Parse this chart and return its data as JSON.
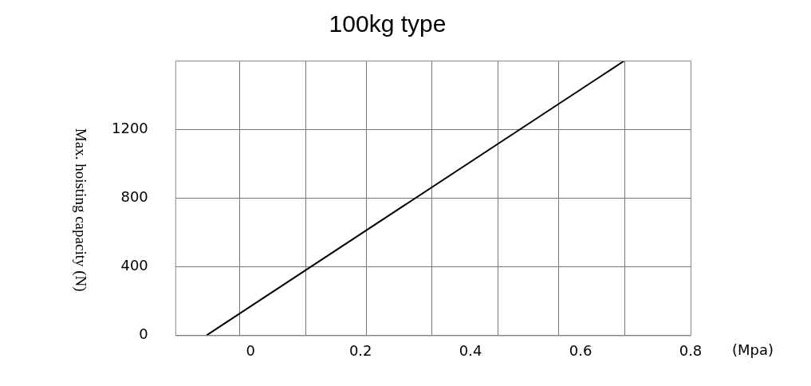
{
  "chart_data": {
    "type": "line",
    "title": "100kg type",
    "xlabel": "(Mpa)",
    "ylabel": "Max. hoisting capacity (N)",
    "series": [
      {
        "x": [
          -0.08,
          0.68
        ],
        "values": [
          0,
          1600
        ],
        "color": "#000000"
      }
    ],
    "xlim": [
      -0.137,
      0.8
    ],
    "xticks": [
      {
        "value": -0.02,
        "label": null
      },
      {
        "value": 0.1,
        "label": null
      },
      {
        "value": 0.21,
        "label": null
      },
      {
        "value": 0.33,
        "label": null
      },
      {
        "value": 0.45,
        "label": null
      },
      {
        "value": 0.56,
        "label": null
      },
      {
        "value": 0.68,
        "label": null
      },
      0,
      0.2,
      0.4,
      0.6,
      0.8
    ],
    "ylim": [
      0,
      1600
    ],
    "yticks": [
      0,
      400,
      800,
      1200
    ],
    "grid": true,
    "legend": false,
    "marker": "none",
    "line_style": "solid"
  }
}
